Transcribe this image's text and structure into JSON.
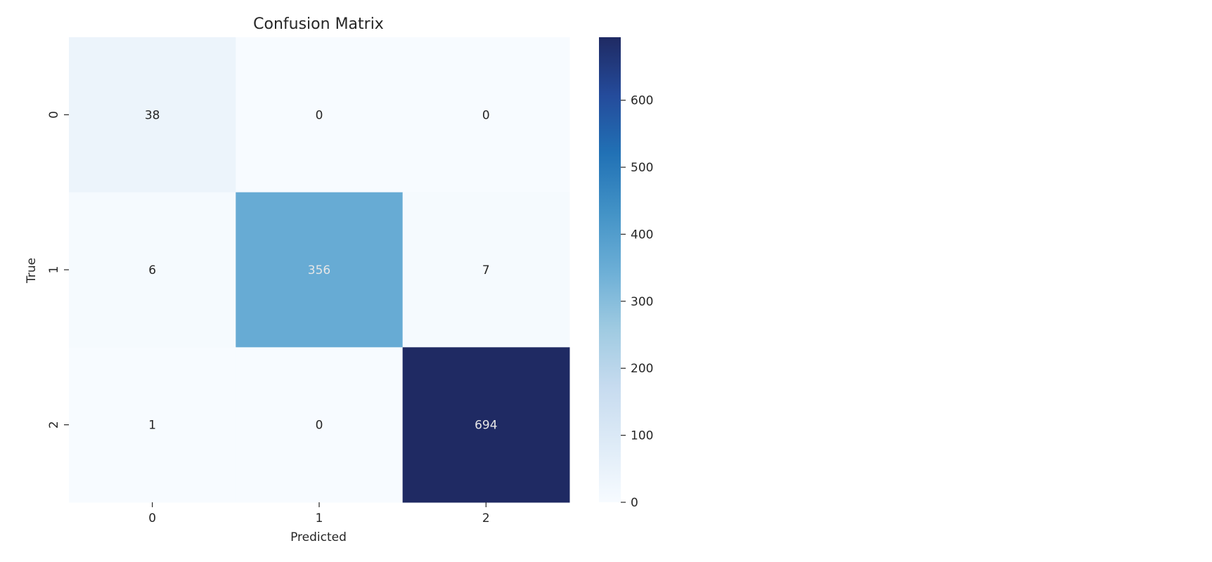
{
  "chart_data": {
    "type": "heatmap",
    "title": "Confusion Matrix",
    "xlabel": "Predicted",
    "ylabel": "True",
    "x_categories": [
      "0",
      "1",
      "2"
    ],
    "y_categories": [
      "0",
      "1",
      "2"
    ],
    "matrix": [
      [
        38,
        0,
        0
      ],
      [
        6,
        356,
        7
      ],
      [
        1,
        0,
        694
      ]
    ],
    "cell_labels": [
      [
        "38",
        "0",
        "0"
      ],
      [
        "6",
        "356",
        "7"
      ],
      [
        "1",
        "0",
        "694"
      ]
    ],
    "colormap": "Blues",
    "value_range": [
      0,
      694
    ],
    "colorbar_ticks": [
      0,
      100,
      200,
      300,
      400,
      500,
      600
    ],
    "colorbar_tick_labels": [
      "0",
      "100",
      "200",
      "300",
      "400",
      "500",
      "600"
    ],
    "colors": {
      "blues_scale": [
        "#f7fbff",
        "#deebf7",
        "#c6dbef",
        "#9ecae1",
        "#6baed6",
        "#4292c6",
        "#2171b5",
        "#08519c",
        "#08306b"
      ],
      "heatmap_top": "#1f2a63",
      "text_dark": "#262626",
      "text_light": "#e6e6e6",
      "axis": "#262626"
    }
  }
}
